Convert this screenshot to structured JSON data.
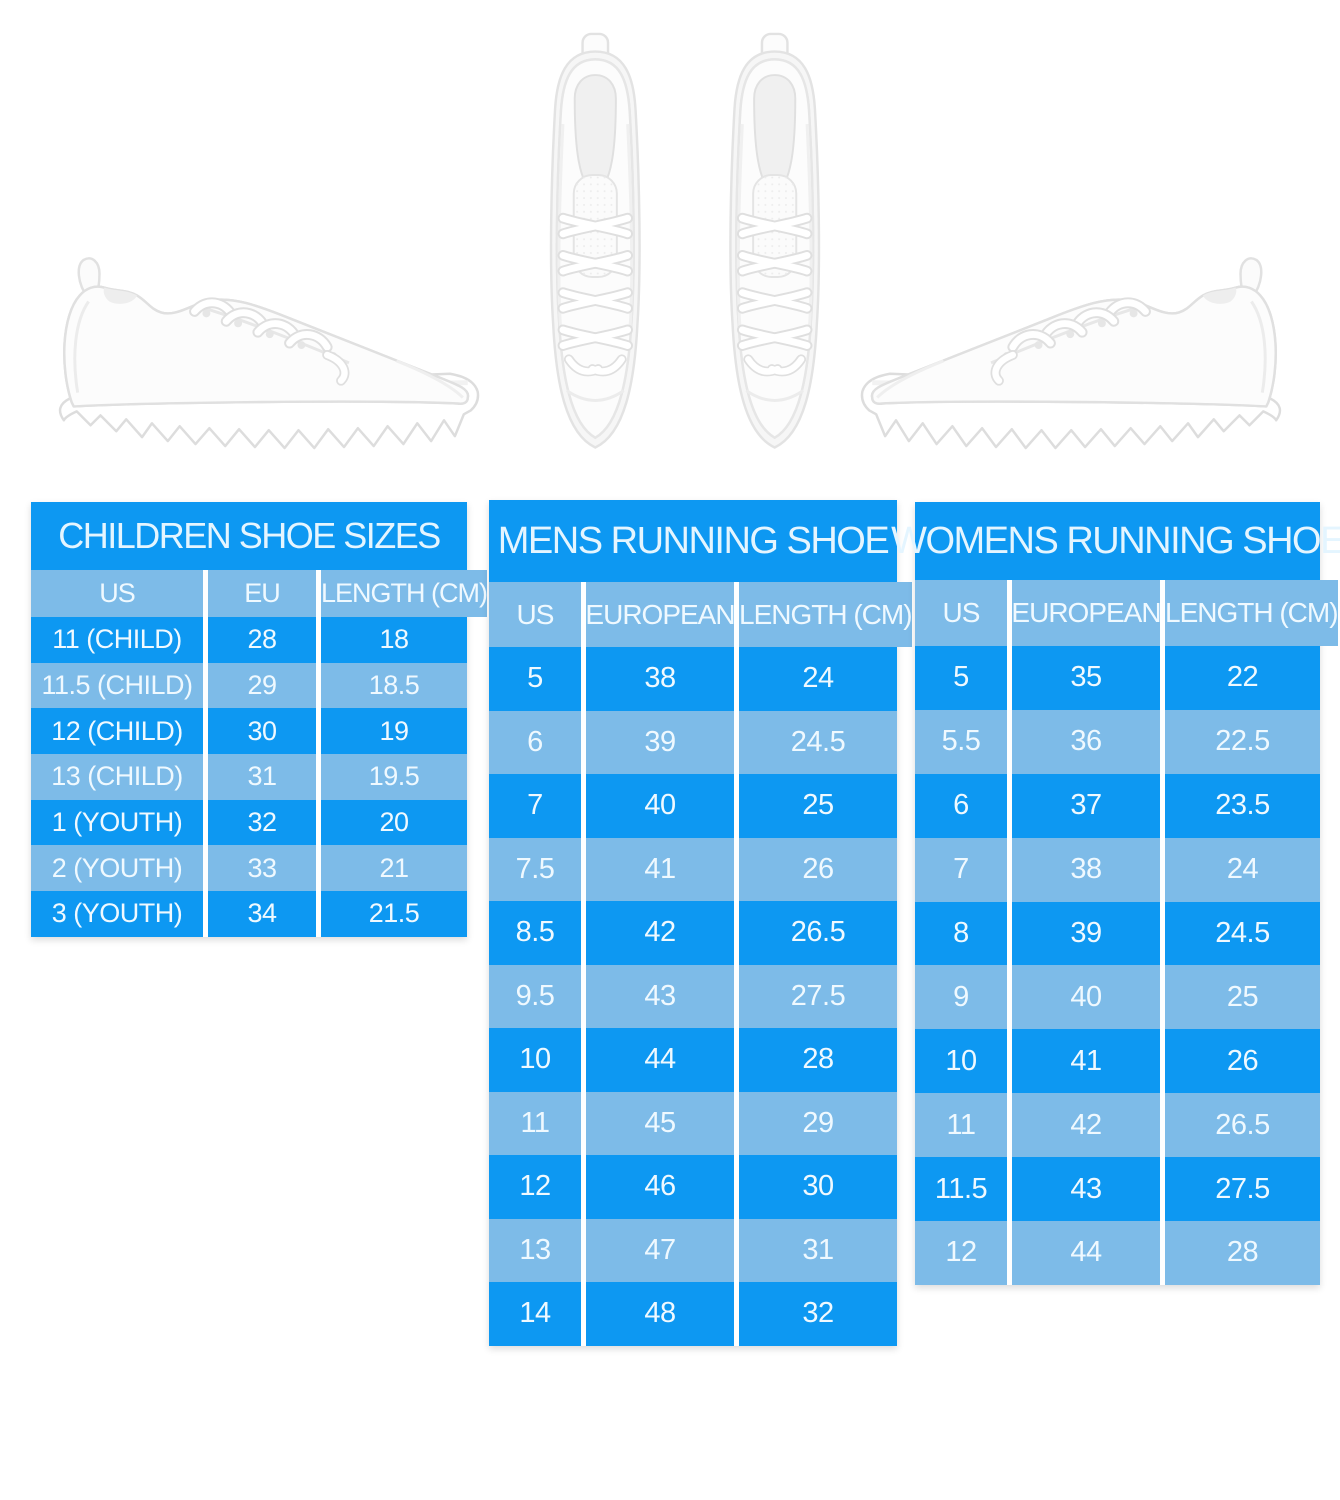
{
  "page": {
    "background": "#FFFFFF"
  },
  "colors": {
    "row_dark_blue": "#0D98F2",
    "row_light_blue": "#7DBBE8",
    "cell_text": "#EFF9FF",
    "separator_white": "#FFFFFF"
  },
  "shoes": {
    "left": "white-running-shoe-side-view",
    "center": "white-running-shoes-pair-top-view",
    "right": "white-running-shoe-side-view-mirrored"
  },
  "chart_data": [
    {
      "type": "table",
      "title": "CHILDREN SHOE SIZES",
      "columns": [
        "US",
        "EU",
        "LENGTH (CM)"
      ],
      "rows": [
        [
          "11 (CHILD)",
          "28",
          "18"
        ],
        [
          "11.5 (CHILD)",
          "29",
          "18.5"
        ],
        [
          "12 (CHILD)",
          "30",
          "19"
        ],
        [
          "13 (CHILD)",
          "31",
          "19.5"
        ],
        [
          "1 (YOUTH)",
          "32",
          "20"
        ],
        [
          "2 (YOUTH)",
          "33",
          "21"
        ],
        [
          "3 (YOUTH)",
          "34",
          "21.5"
        ]
      ]
    },
    {
      "type": "table",
      "title": "MENS RUNNING SHOE",
      "columns": [
        "US",
        "EUROPEAN",
        "LENGTH (CM)"
      ],
      "rows": [
        [
          "5",
          "38",
          "24"
        ],
        [
          "6",
          "39",
          "24.5"
        ],
        [
          "7",
          "40",
          "25"
        ],
        [
          "7.5",
          "41",
          "26"
        ],
        [
          "8.5",
          "42",
          "26.5"
        ],
        [
          "9.5",
          "43",
          "27.5"
        ],
        [
          "10",
          "44",
          "28"
        ],
        [
          "11",
          "45",
          "29"
        ],
        [
          "12",
          "46",
          "30"
        ],
        [
          "13",
          "47",
          "31"
        ],
        [
          "14",
          "48",
          "32"
        ]
      ]
    },
    {
      "type": "table",
      "title": "WOMENS RUNNING SHOE",
      "columns": [
        "US",
        "EUROPEAN",
        "LENGTH (CM)"
      ],
      "rows": [
        [
          "5",
          "35",
          "22"
        ],
        [
          "5.5",
          "36",
          "22.5"
        ],
        [
          "6",
          "37",
          "23.5"
        ],
        [
          "7",
          "38",
          "24"
        ],
        [
          "8",
          "39",
          "24.5"
        ],
        [
          "9",
          "40",
          "25"
        ],
        [
          "10",
          "41",
          "26"
        ],
        [
          "11",
          "42",
          "26.5"
        ],
        [
          "11.5",
          "43",
          "27.5"
        ],
        [
          "12",
          "44",
          "28"
        ]
      ]
    }
  ]
}
